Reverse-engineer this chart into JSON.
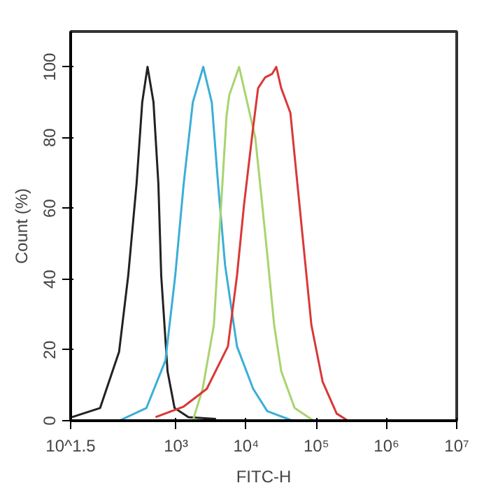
{
  "chart_data": {
    "type": "line",
    "xlabel": "FITC-H",
    "ylabel": "Count (%)",
    "log": "x",
    "grid": false,
    "marker": "none",
    "line_style": "solid",
    "xlim": [
      31.6227766,
      10000000
    ],
    "xticks": [
      {
        "value": 31.6227766,
        "label": "10^1.5"
      },
      {
        "value": 1000,
        "label": "10³"
      },
      {
        "value": 10000,
        "label": "10⁴"
      },
      {
        "value": 100000,
        "label": "10⁵"
      },
      {
        "value": 1000000,
        "label": "10⁶"
      },
      {
        "value": 10000000,
        "label": "10⁷"
      }
    ],
    "ylim": [
      0,
      110
    ],
    "yticks": [
      0,
      20,
      40,
      60,
      80,
      100
    ],
    "series": [
      {
        "color": "#222222",
        "x": [
          33.1,
          83.2,
          155,
          209,
          275,
          331,
          394,
          479,
          562,
          617,
          759,
          955,
          1510,
          3720
        ],
        "values": [
          1,
          3.6,
          19.5,
          41,
          67,
          90,
          100,
          90,
          67,
          41,
          14,
          3.6,
          1,
          0.5
        ]
      },
      {
        "color": "#3aaed8",
        "x": [
          155,
          380,
          708,
          977,
          1290,
          1740,
          2450,
          3240,
          3980,
          5010,
          7410,
          12600,
          20000,
          45700
        ],
        "values": [
          0,
          3.6,
          17,
          41,
          67,
          90,
          100,
          90,
          67,
          44,
          21,
          9,
          2.7,
          0
        ]
      },
      {
        "color": "#a8d46f",
        "x": [
          1740,
          2400,
          3470,
          4370,
          5250,
          5750,
          7940,
          13500,
          15800,
          20000,
          25100,
          31600,
          49000,
          91200
        ],
        "values": [
          0,
          9,
          27,
          60,
          86,
          92,
          100,
          80,
          67,
          47,
          27,
          14,
          3.6,
          0
        ]
      },
      {
        "color": "#d93838",
        "x": [
          513,
          1290,
          2750,
          5500,
          7410,
          9330,
          12600,
          14800,
          18600,
          23400,
          26900,
          31600,
          42700,
          53700,
          67600,
          85100,
          123000,
          195000,
          282000
        ],
        "values": [
          1,
          4,
          9,
          21,
          41,
          61,
          83,
          94,
          97,
          98,
          100,
          94,
          87,
          67,
          47,
          27,
          11,
          2,
          0
        ]
      }
    ]
  }
}
